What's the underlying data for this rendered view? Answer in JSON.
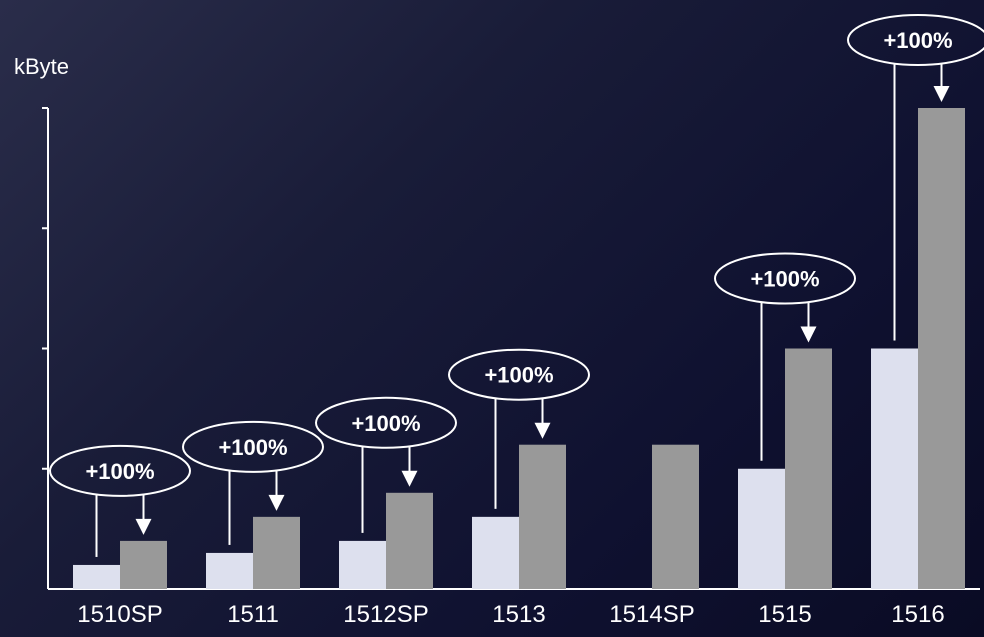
{
  "chart_data": {
    "type": "bar",
    "ylabel": "kByte",
    "categories": [
      "1510SP",
      "1511",
      "1512SP",
      "1513",
      "1514SP",
      "1515",
      "1516"
    ],
    "series": [
      {
        "values": [
          1,
          1.5,
          2,
          3,
          null,
          5,
          10
        ],
        "color": "#dde0ee"
      },
      {
        "values": [
          2,
          3,
          4,
          6,
          6,
          10,
          20
        ],
        "color": "#999999"
      }
    ],
    "ylim": [
      0,
      20
    ],
    "grid": false,
    "annotations": [
      {
        "category": "1510SP",
        "text": "+100%"
      },
      {
        "category": "1511",
        "text": "+100%"
      },
      {
        "category": "1512SP",
        "text": "+100%"
      },
      {
        "category": "1513",
        "text": "+100%"
      },
      {
        "category": "1515",
        "text": "+100%"
      },
      {
        "category": "1516",
        "text": "+100%"
      }
    ]
  }
}
